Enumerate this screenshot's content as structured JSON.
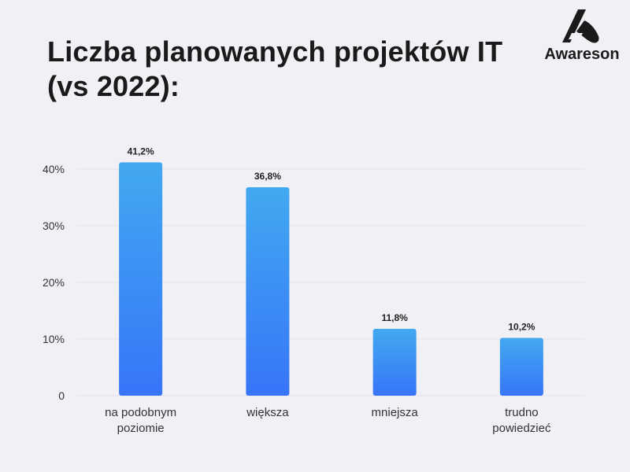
{
  "title_lines": [
    "Liczba planowanych projektów IT",
    "(vs 2022):"
  ],
  "logo": {
    "text": "Awareson",
    "icon": "awareson-logo-icon"
  },
  "colors": {
    "background": "#f1f0f5",
    "bar_top": "#42a9f0",
    "bar_bottom": "#3775f9",
    "grid": "#e3e2ea",
    "axis_text": "#333333",
    "title": "#1a1a1a"
  },
  "chart_data": {
    "type": "bar",
    "title": "Liczba planowanych projektów IT (vs 2022):",
    "categories": [
      [
        "na podobnym",
        "poziomie"
      ],
      [
        "większa"
      ],
      [
        "mniejsza"
      ],
      [
        "trudno",
        "powiedzieć"
      ]
    ],
    "values": [
      41.2,
      36.8,
      11.8,
      10.2
    ],
    "value_labels": [
      "41,2%",
      "36,8%",
      "11,8%",
      "10,2%"
    ],
    "y_ticks": [
      0,
      10,
      20,
      30,
      40
    ],
    "y_tick_labels": [
      "0",
      "10%",
      "20%",
      "30%",
      "40%"
    ],
    "ylim": [
      0,
      40
    ],
    "grid": true,
    "legend": "none"
  }
}
